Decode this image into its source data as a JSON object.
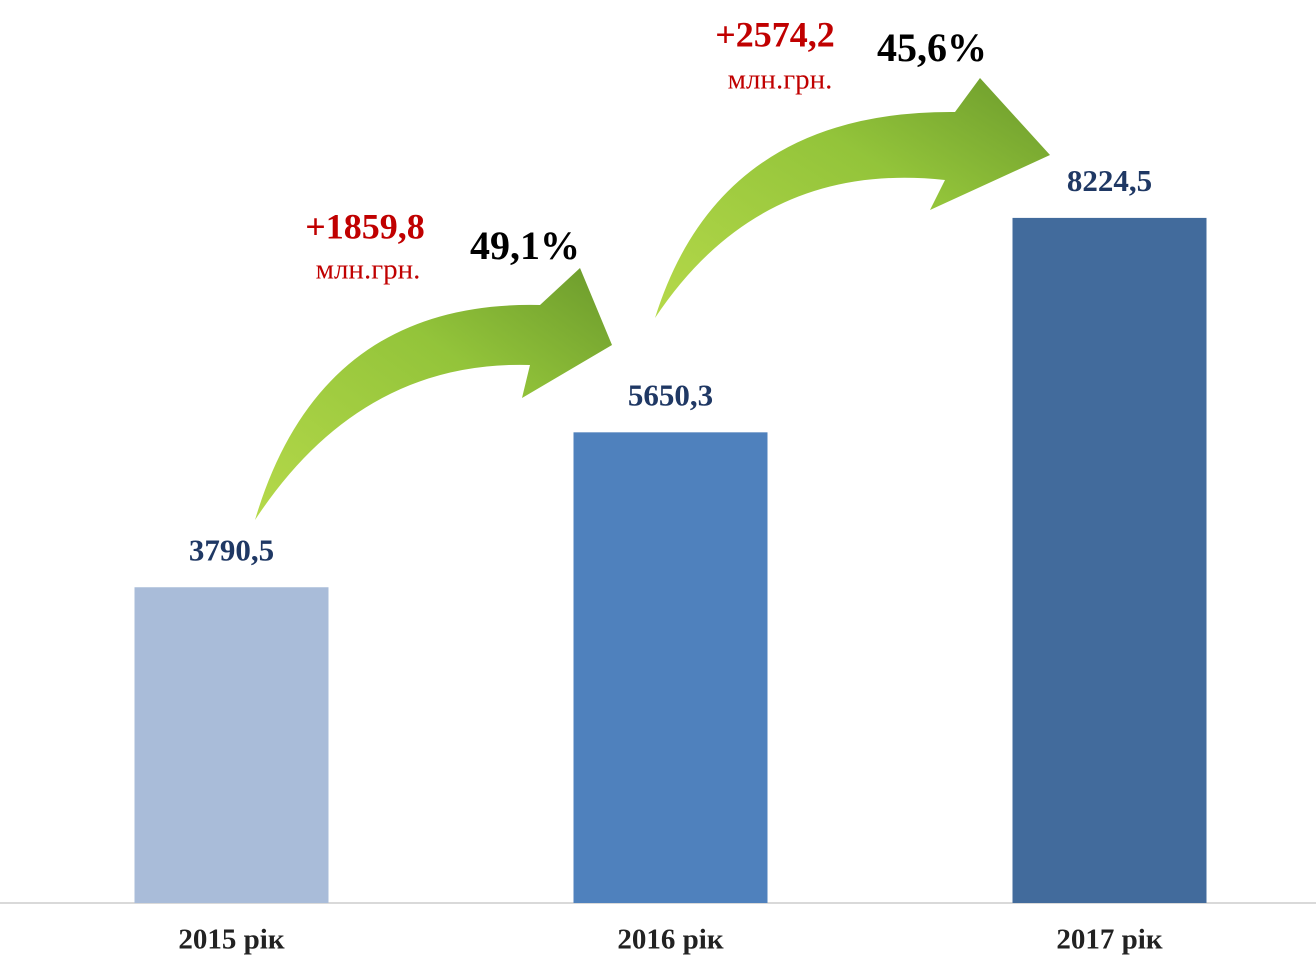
{
  "chart_data": {
    "type": "bar",
    "categories": [
      "2015 рік",
      "2016 рік",
      "2017 рік"
    ],
    "values": [
      3790.5,
      5650.3,
      8224.5
    ],
    "value_labels": [
      "3790,5",
      "5650,3",
      "8224,5"
    ],
    "colors": [
      "#a9bcd9",
      "#4f81bd",
      "#426b9c"
    ],
    "ylim": [
      0,
      10000
    ],
    "annotations": [
      {
        "change": "+1859,8",
        "unit": "млн.грн.",
        "percent": "49,1%"
      },
      {
        "change": "+2574,2",
        "unit": "млн.грн.",
        "percent": "45,6%"
      }
    ]
  }
}
